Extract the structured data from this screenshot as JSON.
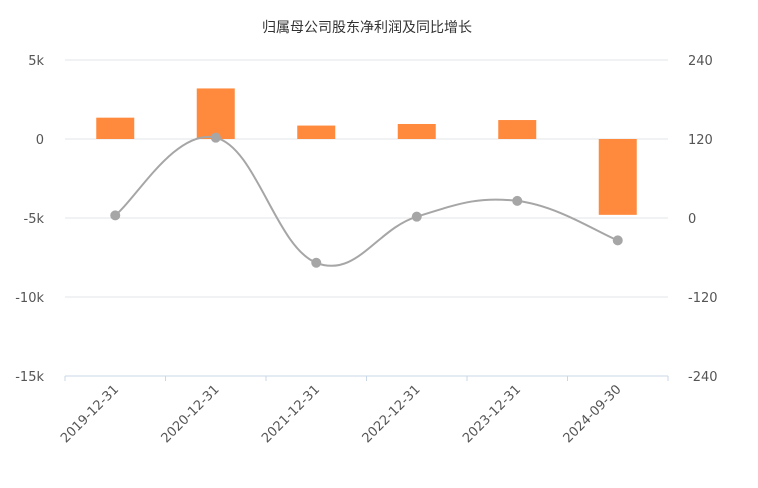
{
  "chart_data": {
    "type": "bar",
    "title": "归属母公司股东净利润及同比增长",
    "categories": [
      "2019-12-31",
      "2020-12-31",
      "2021-12-31",
      "2022-12-31",
      "2023-12-31",
      "2024-09-30"
    ],
    "y_left": {
      "ticks": [
        "5k",
        "0",
        "-5k",
        "-10k",
        "-15k"
      ],
      "range": [
        -15000,
        5000
      ]
    },
    "y_right": {
      "ticks": [
        "240",
        "120",
        "0",
        "-120",
        "-240"
      ],
      "range": [
        -240,
        240
      ]
    },
    "series": [
      {
        "type": "bar",
        "axis": "left",
        "color": "#ff8a3d",
        "values": [
          1350,
          3200,
          850,
          950,
          1200,
          -4800
        ]
      },
      {
        "type": "line",
        "axis": "right",
        "color": "#a6a6a6",
        "values": [
          4,
          122,
          -68,
          2,
          26,
          -34
        ]
      }
    ],
    "grid": true,
    "legend": "none"
  }
}
